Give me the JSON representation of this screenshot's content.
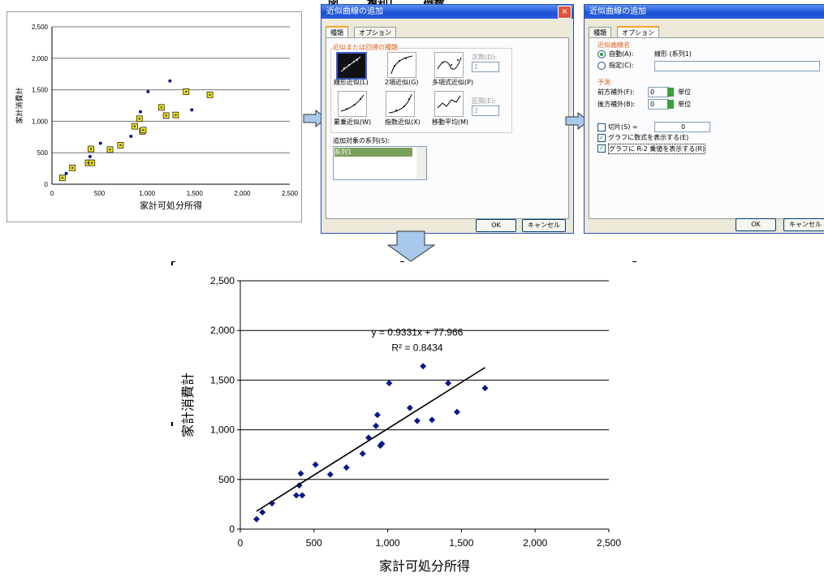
{
  "header": {
    "fragment": "図 　　 複利し　　 倒数"
  },
  "small_chart": {
    "ylabel": "家計消費計",
    "xlabel": "家計可処分所得",
    "yticks": [
      "0",
      "500",
      "1,000",
      "1,500",
      "2,000",
      "2,500"
    ],
    "xticks": [
      "0",
      "500",
      "1,000",
      "1,500",
      "2,000",
      "2,500"
    ]
  },
  "dialog1": {
    "title": "近似曲線の追加",
    "close": "×",
    "tab_type": "種類",
    "tab_options": "オプション",
    "group_title": "近似または回帰の種類",
    "types": [
      "線形近似(L)",
      "2項近似(G)",
      "多項式近似(P)",
      "累乗近似(W)",
      "指数近似(X)",
      "移動平均(M)"
    ],
    "order_label": "次数(D):",
    "order_value": "2",
    "period_label": "区間(E):",
    "period_value": "2",
    "series_label": "追加対象の系列(S):",
    "series_item": "系列1",
    "ok": "OK",
    "cancel": "キャンセル"
  },
  "dialog2": {
    "title": "近似曲線の追加",
    "tab_type": "種類",
    "tab_options": "オプション",
    "name_group": "近似曲線名",
    "auto_label": "自動(A):",
    "auto_value": "線形 (系列1)",
    "custom_label": "指定(C):",
    "forecast_group": "予測",
    "forward_label": "前方補外(F):",
    "forward_value": "0",
    "backward_label": "後方補外(B):",
    "backward_value": "0",
    "unit": "単位",
    "intercept_label": "切片(S) =",
    "intercept_value": "0",
    "show_equation": "グラフに数式を表示する(E)",
    "show_r2": "グラフに R-2 乗値を表示する(R)",
    "ok": "OK",
    "cancel": "キャンセル"
  },
  "colors": {
    "marker": "#0a1a8c",
    "highlight": "#f3e600",
    "arrow": "#a9c9ec"
  },
  "chart_data": [
    {
      "type": "scatter",
      "title": "",
      "xlabel": "家計可処分所得",
      "ylabel": "家計消費計",
      "xlim": [
        0,
        2500
      ],
      "ylim": [
        0,
        2500
      ],
      "xticks": [
        "0",
        "500",
        "1,000",
        "1,500",
        "2,000",
        "2,500"
      ],
      "yticks": [
        "0",
        "500",
        "1,000",
        "1,500",
        "2,000",
        "2,500"
      ],
      "grid": "horizontal",
      "points": [
        [
          110,
          100
        ],
        [
          150,
          170
        ],
        [
          215,
          260
        ],
        [
          380,
          340
        ],
        [
          400,
          440
        ],
        [
          410,
          560
        ],
        [
          420,
          340
        ],
        [
          510,
          650
        ],
        [
          610,
          550
        ],
        [
          720,
          620
        ],
        [
          830,
          760
        ],
        [
          870,
          920
        ],
        [
          920,
          1040
        ],
        [
          930,
          1150
        ],
        [
          950,
          840
        ],
        [
          960,
          860
        ],
        [
          1010,
          1470
        ],
        [
          1150,
          1220
        ],
        [
          1200,
          1090
        ],
        [
          1240,
          1640
        ],
        [
          1300,
          1100
        ],
        [
          1410,
          1470
        ],
        [
          1470,
          1180
        ],
        [
          1660,
          1420
        ]
      ],
      "trendline": {
        "slope": 0.9331,
        "intercept": 77.966,
        "x_range": [
          110,
          1660
        ]
      },
      "equation_label": "y = 0.9331x + 77.966",
      "r2_label": "R² = 0.8434"
    }
  ]
}
